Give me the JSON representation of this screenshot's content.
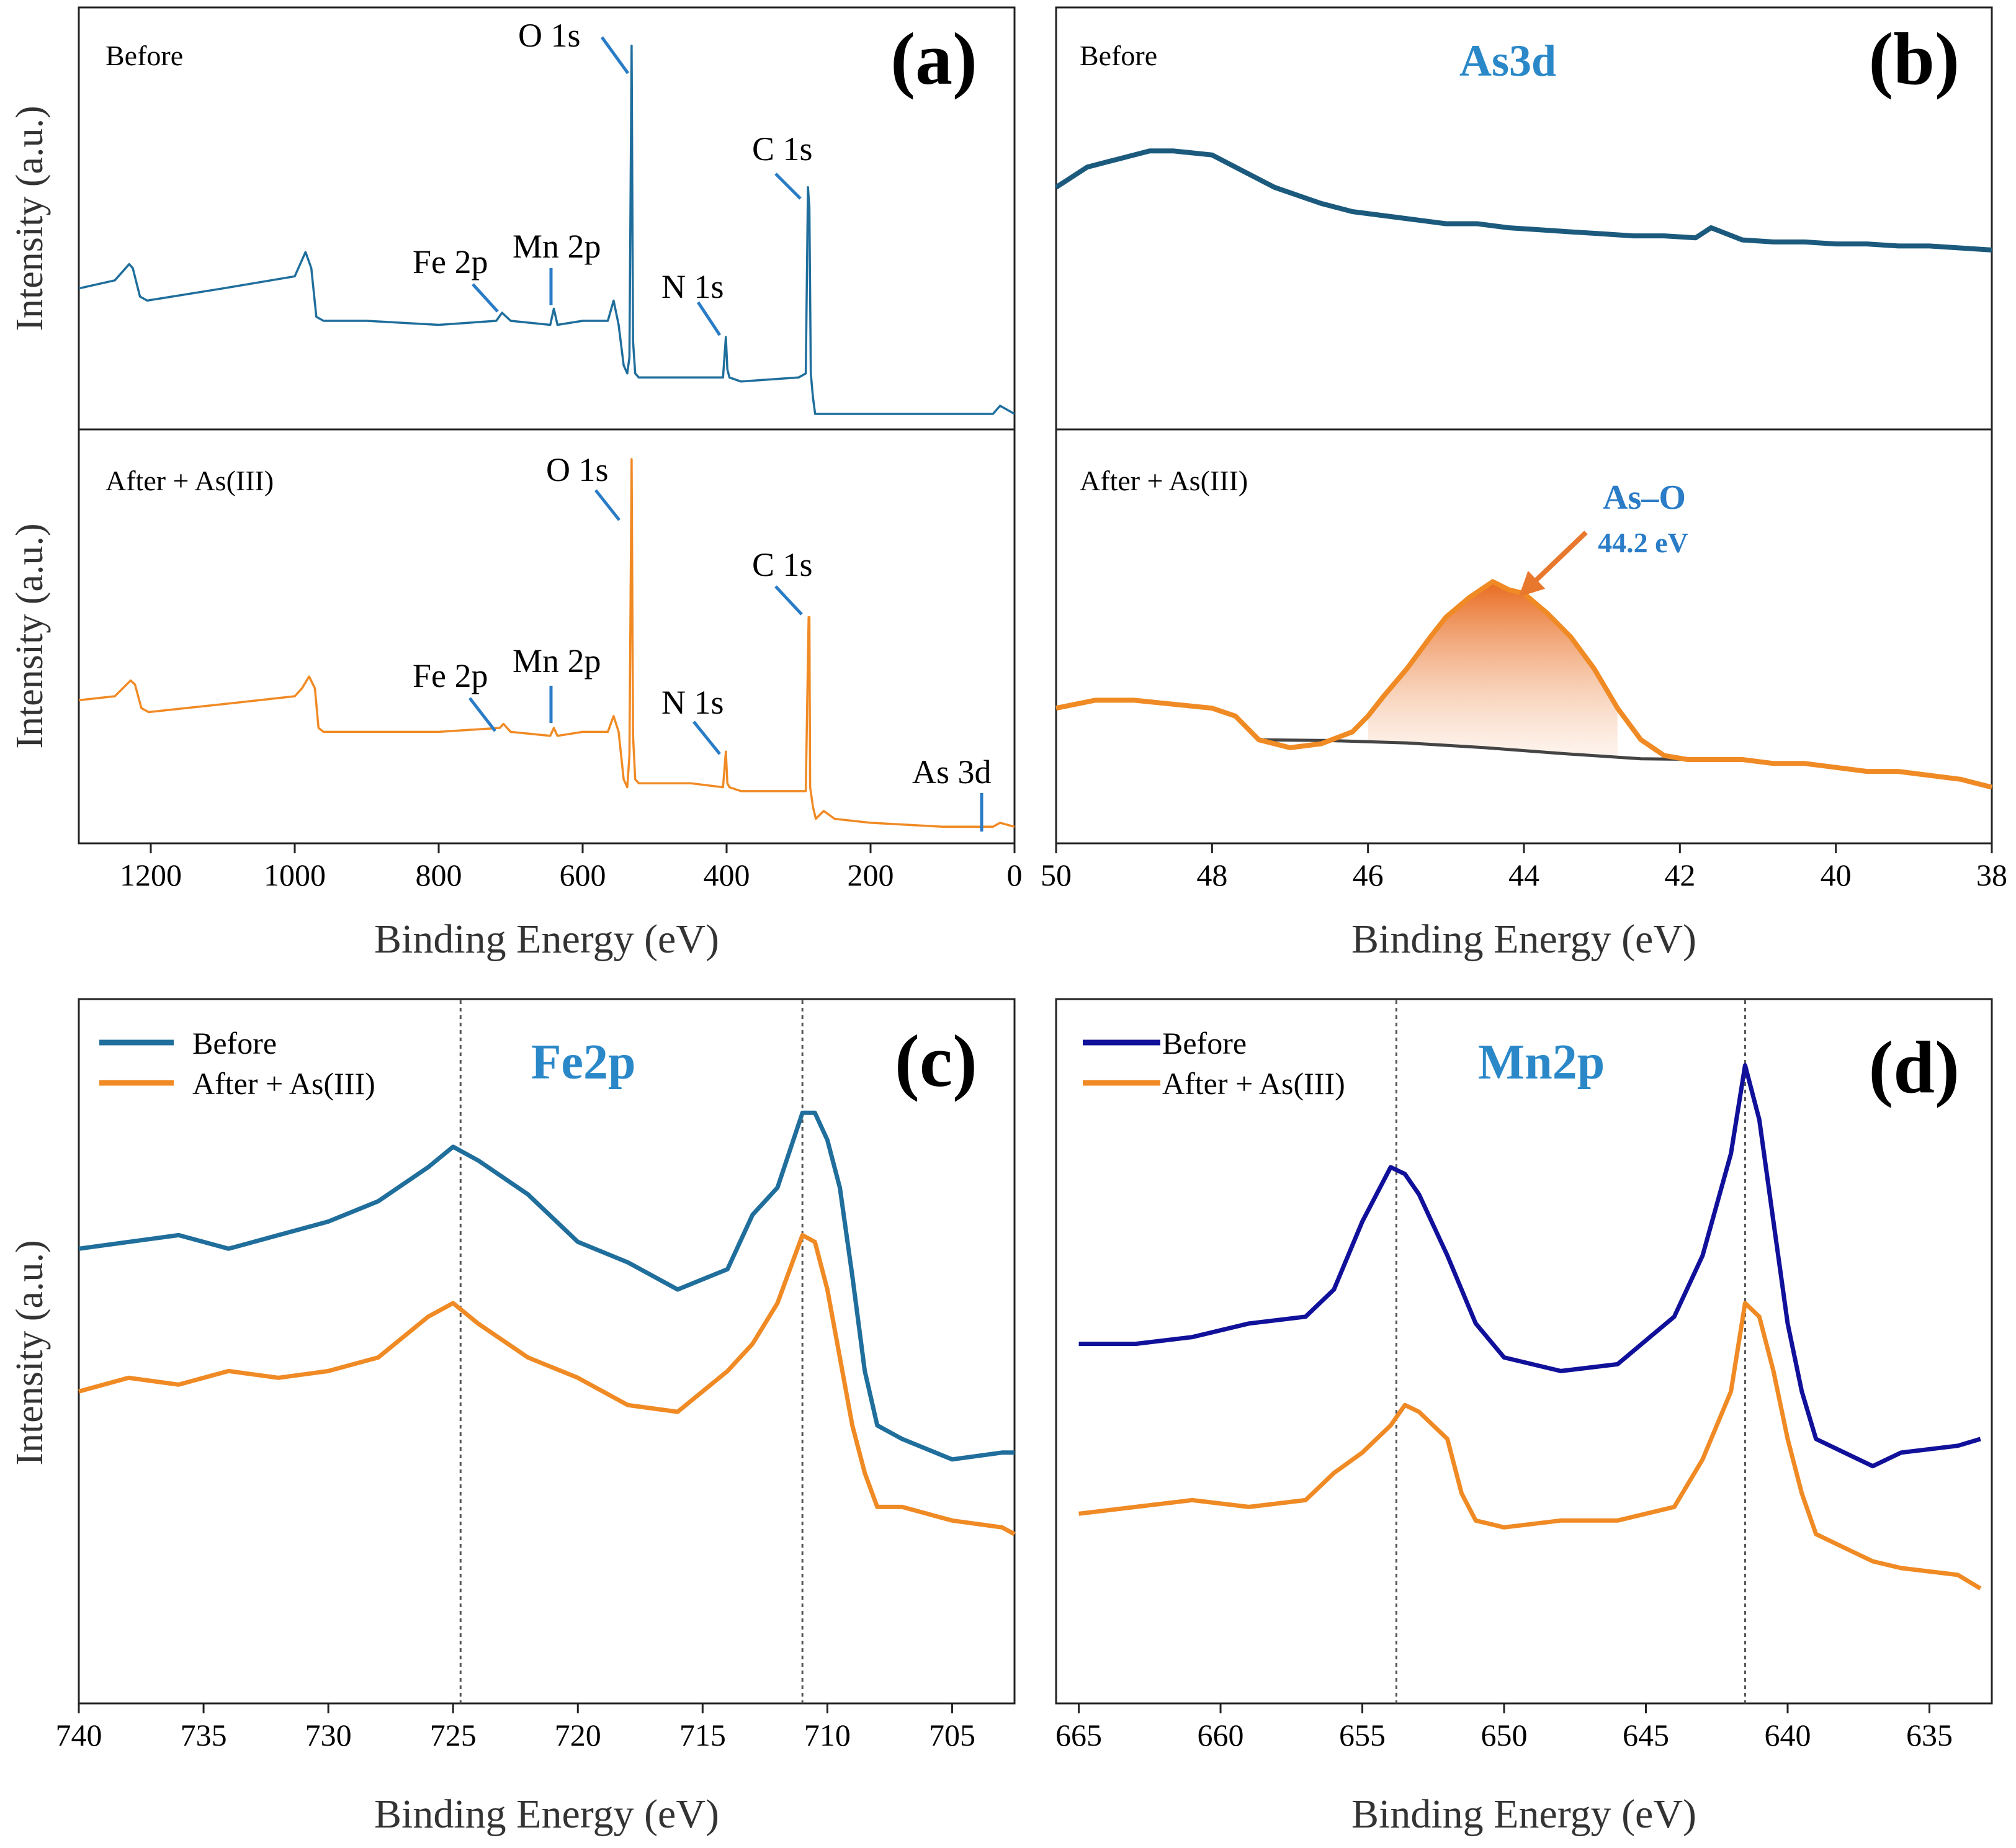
{
  "figure": {
    "colors": {
      "blue": "#1F6E9C",
      "dark_teal": "#1B5A7D",
      "orange": "#F08A24",
      "navy": "#10109A",
      "label_blue": "#2A88C8",
      "baseline": "#444444",
      "arrow": "#E8782E"
    }
  },
  "chart_data": [
    {
      "id": "a",
      "type": "line",
      "panel_label": "(a)",
      "xlabel": "Binding Energy (eV)",
      "ylabel": "Intensity (a.u.)",
      "xlim": [
        1300,
        0
      ],
      "xticks": [
        "1200",
        "1000",
        "800",
        "600",
        "400",
        "200",
        "0"
      ],
      "xtick_values": [
        1200,
        1000,
        800,
        600,
        400,
        200,
        0
      ],
      "subpanels": [
        {
          "name": "Before",
          "label": "Before",
          "color": "#1F6E9C",
          "ylim": [
            0,
            100
          ],
          "x": [
            1300,
            1250,
            1230,
            1225,
            1215,
            1205,
            1100,
            1000,
            990,
            985,
            977,
            970,
            960,
            900,
            800,
            720,
            712,
            700,
            645,
            640,
            635,
            600,
            565,
            557,
            550,
            543,
            538,
            535,
            532,
            530,
            527,
            522,
            500,
            450,
            405,
            401,
            399,
            396,
            380,
            300,
            290,
            287,
            285,
            283,
            280,
            277,
            250,
            200,
            100,
            30,
            20,
            0
          ],
          "y": [
            33,
            35,
            39,
            38,
            31,
            30,
            33,
            36,
            40,
            42,
            38,
            26,
            25,
            25,
            24,
            25,
            27,
            25,
            24,
            28,
            24,
            25,
            25,
            30,
            24,
            14,
            12,
            16,
            93,
            20,
            12,
            11,
            11,
            11,
            11,
            21,
            13,
            11,
            10,
            11,
            12,
            58,
            53,
            12,
            6,
            2,
            2,
            2,
            2,
            2,
            4,
            2
          ]
        },
        {
          "name": "After + As(III)",
          "label": "After + As(III)",
          "color": "#F08A24",
          "ylim": [
            0,
            100
          ],
          "x": [
            1300,
            1250,
            1228,
            1222,
            1213,
            1203,
            1100,
            1000,
            990,
            980,
            972,
            967,
            960,
            900,
            800,
            715,
            710,
            700,
            645,
            640,
            635,
            600,
            565,
            557,
            550,
            543,
            538,
            535,
            532,
            530,
            527,
            522,
            500,
            450,
            405,
            401,
            399,
            396,
            380,
            300,
            290,
            286,
            285,
            284,
            280,
            276,
            265,
            250,
            200,
            100,
            30,
            20,
            0
          ],
          "y": [
            34,
            35,
            39,
            38,
            32,
            31,
            33,
            35,
            37,
            40,
            37,
            27,
            26,
            26,
            26,
            27,
            28,
            26,
            25,
            27,
            25,
            26,
            26,
            30,
            26,
            14,
            12,
            20,
            95,
            25,
            14,
            13,
            13,
            13,
            12,
            21,
            13,
            12,
            11,
            11,
            11,
            55,
            55,
            12,
            7,
            4,
            6,
            4,
            3,
            2,
            2,
            3,
            2
          ]
        }
      ],
      "annotations_before": [
        {
          "text": "O 1s",
          "x": 533
        },
        {
          "text": "C 1s",
          "x": 285
        },
        {
          "text": "Fe 2p",
          "x": 712
        },
        {
          "text": "Mn 2p",
          "x": 642
        },
        {
          "text": "N 1s",
          "x": 400
        }
      ],
      "annotations_after": [
        {
          "text": "O 1s",
          "x": 533
        },
        {
          "text": "C 1s",
          "x": 285
        },
        {
          "text": "Fe 2p",
          "x": 712
        },
        {
          "text": "Mn 2p",
          "x": 642
        },
        {
          "text": "N 1s",
          "x": 400
        },
        {
          "text": "As 3d",
          "x": 45
        }
      ]
    },
    {
      "id": "b",
      "type": "line",
      "panel_label": "(b)",
      "title": "As3d",
      "xlabel": "Binding Energy (eV)",
      "xlim": [
        50,
        38
      ],
      "xticks": [
        "50",
        "48",
        "46",
        "44",
        "42",
        "40",
        "38"
      ],
      "xtick_values": [
        50,
        48,
        46,
        44,
        42,
        40,
        38
      ],
      "subpanels": [
        {
          "name": "Before",
          "label": "Before",
          "color": "#1B5A7D",
          "ylim": [
            0,
            100
          ],
          "x": [
            50,
            49.6,
            49.2,
            48.8,
            48.5,
            48.0,
            47.6,
            47.2,
            46.9,
            46.6,
            46.2,
            45.8,
            45.4,
            45.0,
            44.6,
            44.2,
            43.8,
            43.4,
            43.0,
            42.6,
            42.2,
            41.8,
            41.6,
            41.2,
            40.8,
            40.4,
            40.0,
            39.6,
            39.2,
            38.8,
            38.4,
            38.0
          ],
          "y": [
            58,
            63,
            65,
            67,
            67,
            66,
            62,
            58,
            56,
            54,
            52,
            51,
            50,
            49,
            49,
            48,
            47.5,
            47,
            46.5,
            46,
            46,
            45.5,
            48,
            45,
            44.5,
            44.5,
            44,
            44,
            43.5,
            43.5,
            43,
            42.5
          ]
        },
        {
          "name": "After + As(III)",
          "label": "After + As(III)",
          "color": "#F08A24",
          "ylim": [
            0,
            100
          ],
          "x": [
            50,
            49.5,
            49.0,
            48.5,
            48.0,
            47.7,
            47.4,
            47.0,
            46.6,
            46.2,
            46.0,
            45.8,
            45.5,
            45.2,
            45.0,
            44.7,
            44.4,
            44.2,
            44.0,
            43.7,
            43.4,
            43.1,
            42.8,
            42.5,
            42.2,
            41.9,
            41.6,
            41.2,
            40.8,
            40.4,
            40.0,
            39.6,
            39.2,
            38.8,
            38.4,
            38.0
          ],
          "y": [
            32,
            34,
            34,
            33,
            32,
            30,
            24,
            22,
            23,
            26,
            30,
            35,
            42,
            50,
            55,
            60,
            64,
            62,
            61,
            56,
            50,
            42,
            32,
            24,
            20,
            19,
            19,
            19,
            18,
            18,
            17,
            16,
            16,
            15,
            14,
            12
          ]
        }
      ],
      "baseline": {
        "x": [
          47.4,
          46.5,
          45.5,
          44.5,
          43.5,
          42.5,
          41.6
        ],
        "y": [
          24,
          23.8,
          23.2,
          22,
          20.5,
          19.2,
          19
        ]
      },
      "fill": {
        "x": [
          46.0,
          45.8,
          45.5,
          45.2,
          45.0,
          44.7,
          44.4,
          44.2,
          44.0,
          43.7,
          43.4,
          43.1,
          42.8
        ],
        "y": [
          30,
          35,
          42,
          50,
          55,
          60,
          64,
          62,
          61,
          56,
          50,
          42,
          32
        ],
        "base_y": [
          23.6,
          23.5,
          23.2,
          22.8,
          22.6,
          22.3,
          22,
          21.7,
          21.4,
          21,
          20.5,
          20.1,
          19.8
        ]
      },
      "annotation": {
        "text": "As–O",
        "subtext": "44.2 eV",
        "x": 44.2
      }
    },
    {
      "id": "c",
      "type": "line",
      "panel_label": "(c)",
      "title": "Fe2p",
      "xlabel": "Binding Energy (eV)",
      "ylabel": "Intensity (a.u.)",
      "xlim": [
        740,
        702.5
      ],
      "ylim": [
        0,
        100
      ],
      "xticks": [
        "740",
        "735",
        "730",
        "725",
        "720",
        "715",
        "710",
        "705"
      ],
      "xtick_values": [
        740,
        735,
        730,
        725,
        720,
        715,
        710,
        705
      ],
      "vlines": [
        724.7,
        711.0
      ],
      "legend": [
        "Before",
        "After + As(III)"
      ],
      "series": [
        {
          "name": "Before",
          "color": "#1F6E9C",
          "x": [
            740,
            738,
            736,
            734,
            732,
            730,
            728,
            726,
            725,
            724,
            722,
            720,
            718,
            716,
            714,
            713,
            712,
            711,
            710.5,
            710,
            709.5,
            709,
            708.5,
            708,
            707,
            705,
            703,
            702.5
          ],
          "y": [
            66,
            67,
            68,
            66,
            68,
            70,
            73,
            78,
            81,
            79,
            74,
            67,
            64,
            60,
            63,
            71,
            75,
            86,
            86,
            82,
            75,
            62,
            48,
            40,
            38,
            35,
            36,
            36
          ]
        },
        {
          "name": "After + As(III)",
          "color": "#F08A24",
          "x": [
            740,
            738,
            736,
            734,
            732,
            730,
            728,
            726,
            725,
            724,
            722,
            720,
            718,
            716,
            714,
            713,
            712,
            711,
            710.5,
            710,
            709.5,
            709,
            708.5,
            708,
            707,
            705,
            703,
            702.5
          ],
          "y": [
            45,
            47,
            46,
            48,
            47,
            48,
            50,
            56,
            58,
            55,
            50,
            47,
            43,
            42,
            48,
            52,
            58,
            68,
            67,
            60,
            50,
            40,
            33,
            28,
            28,
            26,
            25,
            24
          ]
        }
      ]
    },
    {
      "id": "d",
      "type": "line",
      "panel_label": "(d)",
      "title": "Mn2p",
      "xlabel": "Binding Energy (eV)",
      "xlim": [
        665.8,
        632.8
      ],
      "ylim": [
        0,
        100
      ],
      "xticks": [
        "665",
        "660",
        "655",
        "650",
        "645",
        "640",
        "635"
      ],
      "xtick_values": [
        665,
        660,
        655,
        650,
        645,
        640,
        635
      ],
      "vlines": [
        653.8,
        641.5
      ],
      "legend": [
        "Before",
        "After + As(III)"
      ],
      "series": [
        {
          "name": "Before",
          "color": "#10109A",
          "x": [
            665,
            663,
            661,
            659,
            657,
            656,
            655,
            654,
            653.5,
            653,
            652,
            651,
            650,
            648,
            646,
            644,
            643,
            642,
            641.5,
            641,
            640.5,
            640,
            639.5,
            639,
            638,
            637,
            636,
            634,
            633.2
          ],
          "y": [
            52,
            52,
            53,
            55,
            56,
            60,
            70,
            78,
            77,
            74,
            65,
            55,
            50,
            48,
            49,
            56,
            65,
            80,
            93,
            85,
            70,
            55,
            45,
            38,
            36,
            34,
            36,
            37,
            38
          ]
        },
        {
          "name": "After + As(III)",
          "color": "#F08A24",
          "x": [
            665,
            663,
            661,
            659,
            657,
            656,
            655,
            654,
            653.5,
            653,
            652,
            651.5,
            651,
            650,
            648,
            646,
            644,
            643,
            642,
            641.5,
            641,
            640.5,
            640,
            639.5,
            639,
            638,
            637,
            636,
            634,
            633.2
          ],
          "y": [
            27,
            28,
            29,
            28,
            29,
            33,
            36,
            40,
            43,
            42,
            38,
            30,
            26,
            25,
            26,
            26,
            28,
            35,
            45,
            58,
            56,
            48,
            38,
            30,
            24,
            22,
            20,
            19,
            18,
            16
          ]
        }
      ]
    }
  ]
}
